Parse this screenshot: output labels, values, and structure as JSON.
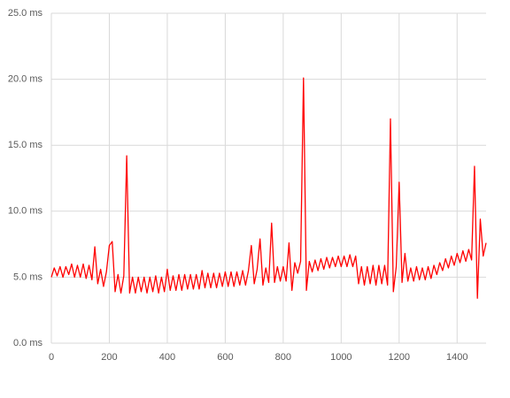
{
  "chart_data": {
    "type": "line",
    "color": "#ff0000",
    "grid": true,
    "xlim": [
      0,
      1500
    ],
    "xticks": [
      0,
      200,
      400,
      600,
      800,
      1000,
      1200,
      1400
    ],
    "ylim": [
      0,
      25
    ],
    "yticks": [
      {
        "value": 0,
        "label": "0.0 ms"
      },
      {
        "value": 5,
        "label": "5.0 ms"
      },
      {
        "value": 10,
        "label": "10.0 ms"
      },
      {
        "value": 15,
        "label": "15.0 ms"
      },
      {
        "value": 20,
        "label": "20.0 ms"
      },
      {
        "value": 25,
        "label": "25.0 ms"
      }
    ],
    "x": [
      0,
      10,
      20,
      30,
      40,
      50,
      60,
      70,
      80,
      90,
      100,
      110,
      120,
      130,
      140,
      150,
      160,
      170,
      180,
      190,
      200,
      210,
      220,
      230,
      240,
      250,
      260,
      270,
      280,
      290,
      300,
      310,
      320,
      330,
      340,
      350,
      360,
      370,
      380,
      390,
      400,
      410,
      420,
      430,
      440,
      450,
      460,
      470,
      480,
      490,
      500,
      510,
      520,
      530,
      540,
      550,
      560,
      570,
      580,
      590,
      600,
      610,
      620,
      630,
      640,
      650,
      660,
      670,
      680,
      690,
      700,
      710,
      720,
      730,
      740,
      750,
      760,
      770,
      780,
      790,
      800,
      810,
      820,
      830,
      840,
      850,
      860,
      870,
      880,
      890,
      900,
      910,
      920,
      930,
      940,
      950,
      960,
      970,
      980,
      990,
      1000,
      1010,
      1020,
      1030,
      1040,
      1050,
      1060,
      1070,
      1080,
      1090,
      1100,
      1110,
      1120,
      1130,
      1140,
      1150,
      1160,
      1170,
      1180,
      1190,
      1200,
      1210,
      1220,
      1230,
      1240,
      1250,
      1260,
      1270,
      1280,
      1290,
      1300,
      1310,
      1320,
      1330,
      1340,
      1350,
      1360,
      1370,
      1380,
      1390,
      1400,
      1410,
      1420,
      1430,
      1440,
      1450,
      1460,
      1470,
      1480,
      1490,
      1500
    ],
    "values": [
      5.0,
      5.7,
      5.1,
      5.8,
      5.0,
      5.8,
      5.2,
      6.0,
      5.0,
      5.9,
      5.0,
      6.0,
      4.9,
      5.9,
      4.8,
      7.3,
      4.5,
      5.6,
      4.3,
      5.4,
      7.4,
      7.7,
      3.9,
      5.2,
      3.8,
      5.1,
      14.2,
      3.8,
      5.0,
      3.8,
      5.0,
      3.9,
      5.0,
      3.8,
      5.0,
      3.9,
      5.1,
      3.8,
      5.0,
      3.9,
      5.6,
      4.0,
      5.1,
      4.0,
      5.2,
      4.0,
      5.2,
      4.1,
      5.2,
      4.1,
      5.2,
      4.1,
      5.5,
      4.2,
      5.3,
      4.2,
      5.3,
      4.2,
      5.3,
      4.3,
      5.4,
      4.3,
      5.4,
      4.3,
      5.4,
      4.4,
      5.5,
      4.4,
      5.5,
      7.4,
      4.5,
      5.6,
      7.9,
      4.4,
      5.7,
      4.6,
      9.1,
      4.6,
      5.8,
      4.7,
      5.8,
      4.7,
      7.6,
      4.0,
      6.1,
      5.3,
      6.2,
      20.1,
      4.0,
      6.2,
      5.4,
      6.3,
      5.5,
      6.4,
      5.6,
      6.5,
      5.7,
      6.5,
      5.8,
      6.6,
      5.8,
      6.6,
      5.8,
      6.7,
      5.8,
      6.6,
      4.5,
      5.8,
      4.4,
      5.8,
      4.5,
      5.9,
      4.4,
      5.9,
      4.5,
      5.9,
      4.4,
      17.0,
      3.9,
      5.8,
      12.2,
      4.6,
      6.8,
      4.7,
      5.7,
      4.7,
      5.8,
      4.8,
      5.7,
      4.8,
      5.8,
      4.9,
      5.9,
      5.2,
      6.1,
      5.5,
      6.4,
      5.7,
      6.6,
      5.9,
      6.8,
      6.1,
      7.0,
      6.2,
      7.1,
      6.3,
      13.4,
      3.4,
      9.4,
      6.6,
      7.6
    ]
  }
}
